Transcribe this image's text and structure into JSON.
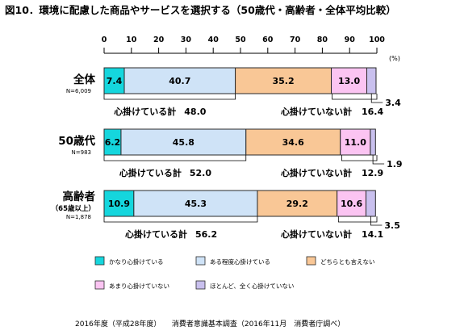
{
  "title": "図10．環境に配慮した商品やサービスを選択する（50歳代・高齢者・全体平均比較）",
  "source": "2016年度（平成28年度）　　消費者意識基本調査（2016年11月　消費者庁調べ）",
  "colors": {
    "s0": "#15d6dd",
    "s1": "#cfe3f7",
    "s2": "#f9c796",
    "s3": "#fbc4f2",
    "s4": "#c9c0ee",
    "border": "#2a2a2a"
  },
  "chart_data": {
    "type": "bar",
    "orientation": "horizontal",
    "stacked": true,
    "unit": "(%)",
    "xlim": [
      0,
      100
    ],
    "xticks": [
      "0",
      "10",
      "20",
      "30",
      "40",
      "50",
      "60",
      "70",
      "80",
      "90",
      "100"
    ],
    "categories": [
      {
        "label": "全体",
        "sub": "",
        "n": "N=6,009"
      },
      {
        "label": "50歳代",
        "sub": "",
        "n": "N=983"
      },
      {
        "label": "高齢者",
        "sub": "（65歳以上）",
        "n": "N=1,878"
      }
    ],
    "series": [
      {
        "name": "かなり心掛けている",
        "values": [
          7.4,
          6.2,
          10.9
        ],
        "labels": [
          "7.4",
          "6.2",
          "10.9"
        ]
      },
      {
        "name": "ある程度心掛けている",
        "values": [
          40.7,
          45.8,
          45.3
        ],
        "labels": [
          "40.7",
          "45.8",
          "45.3"
        ]
      },
      {
        "name": "どちらとも言えない",
        "values": [
          35.2,
          34.6,
          29.2
        ],
        "labels": [
          "35.2",
          "34.6",
          "29.2"
        ]
      },
      {
        "name": "あまり心掛けていない",
        "values": [
          13.0,
          11.0,
          10.6
        ],
        "labels": [
          "13.0",
          "11.0",
          "10.6"
        ]
      },
      {
        "name": "ほとんど、全く心掛けていない",
        "values": [
          3.4,
          1.9,
          3.5
        ],
        "labels": [
          "3.4",
          "1.9",
          "3.5"
        ]
      }
    ],
    "totals": {
      "care_label": "心掛けている計",
      "notcare_label": "心掛けていない計",
      "care": [
        "48.0",
        "52.0",
        "56.2"
      ],
      "notcare": [
        "16.4",
        "12.9",
        "14.1"
      ]
    },
    "legend_placement": "bottom"
  }
}
